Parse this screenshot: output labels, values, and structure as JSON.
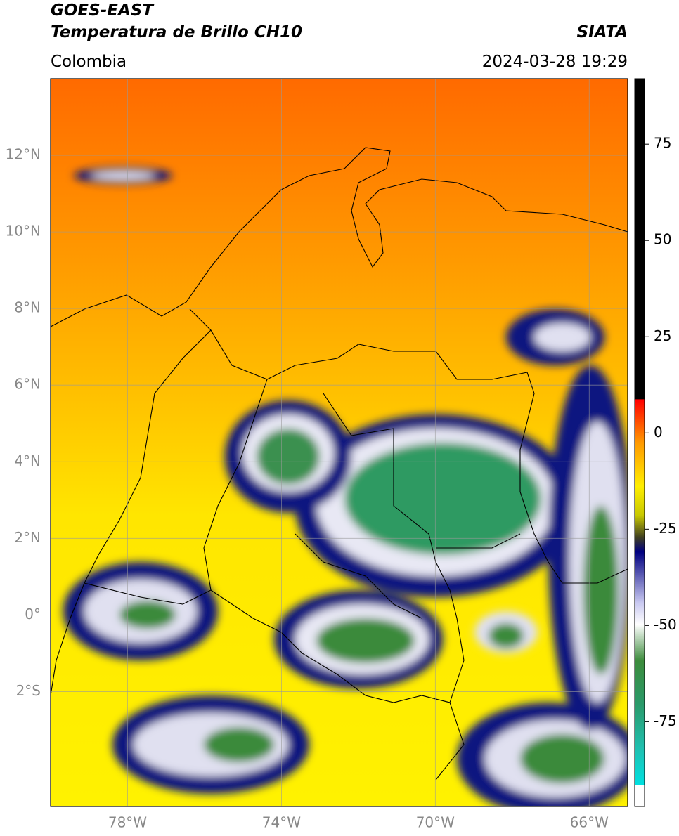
{
  "header": {
    "title": "GOES-EAST",
    "subtitle": "Temperatura de Brillo CH10",
    "source": "SIATA",
    "region": "Colombia",
    "datetime": "2024-03-28 19:29"
  },
  "map": {
    "xlim": [
      -80,
      -65
    ],
    "ylim": [
      -5,
      14
    ],
    "xticks": [
      {
        "value": -78,
        "label": "78°W"
      },
      {
        "value": -74,
        "label": "74°W"
      },
      {
        "value": -70,
        "label": "70°W"
      },
      {
        "value": -66,
        "label": "66°W"
      }
    ],
    "yticks": [
      {
        "value": 12,
        "label": "12°N"
      },
      {
        "value": 10,
        "label": "10°N"
      },
      {
        "value": 8,
        "label": "8°N"
      },
      {
        "value": 6,
        "label": "6°N"
      },
      {
        "value": 4,
        "label": "4°N"
      },
      {
        "value": 2,
        "label": "2°N"
      },
      {
        "value": 0,
        "label": "0°"
      },
      {
        "value": -2,
        "label": "2°S"
      }
    ],
    "grid": true
  },
  "colorbar": {
    "lim": [
      -97,
      92
    ],
    "ticks": [
      75,
      50,
      25,
      0,
      -25,
      -50,
      -75
    ]
  }
}
